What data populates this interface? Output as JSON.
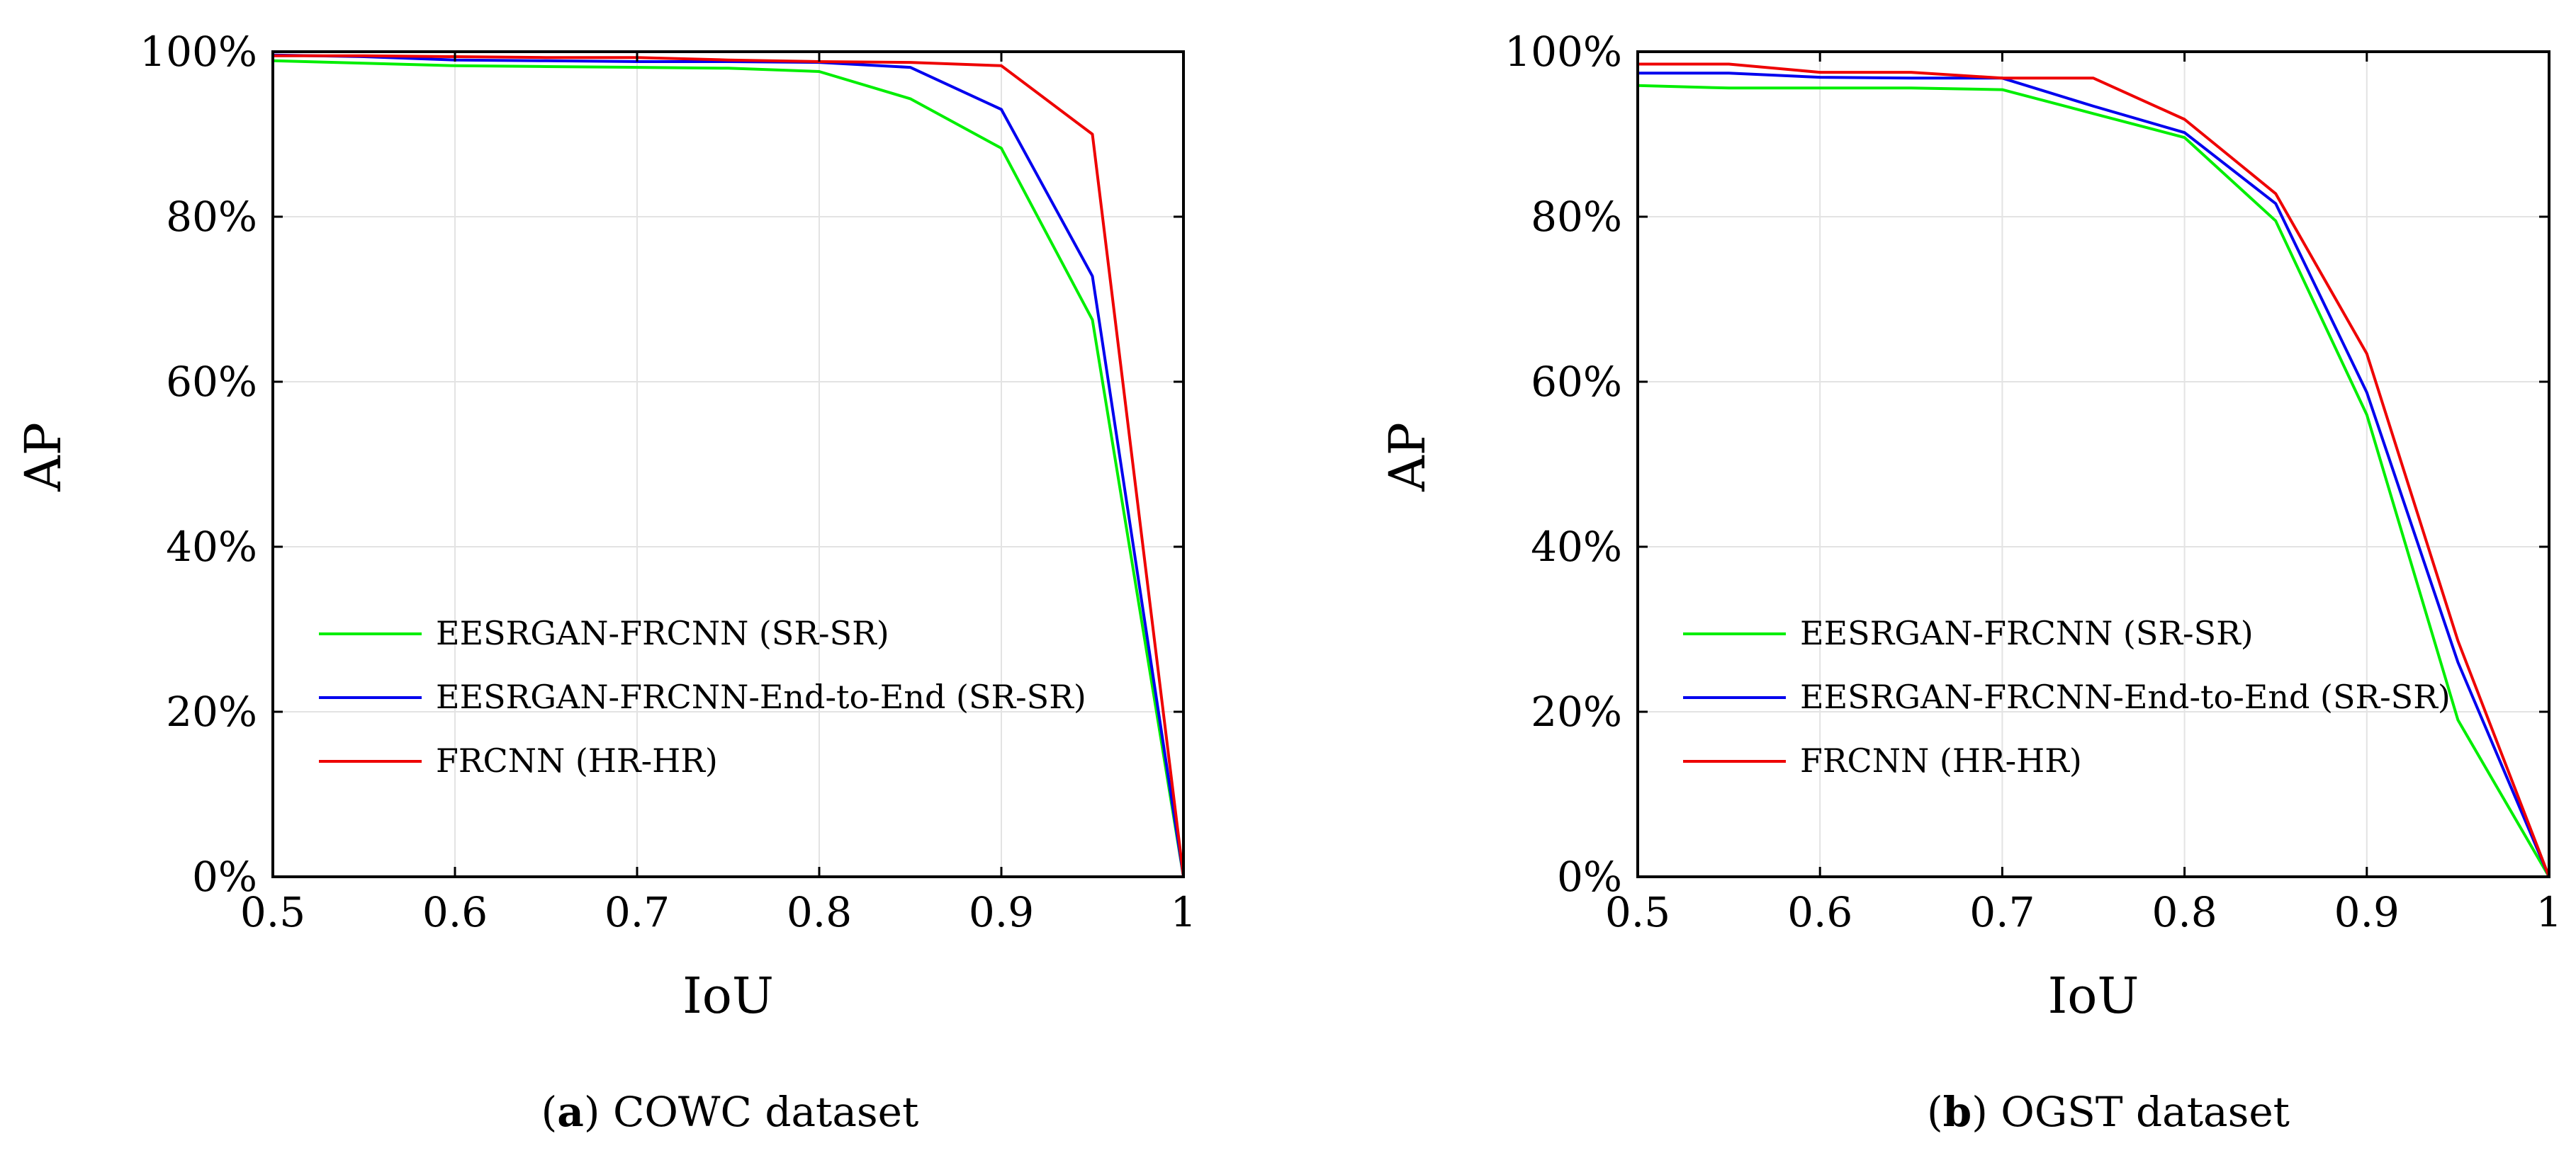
{
  "figure": {
    "colors": {
      "green": "#00ee00",
      "blue": "#0000ee",
      "red": "#ee0000"
    }
  },
  "chart_data": [
    {
      "type": "line",
      "caption_label": "a",
      "caption_text": "COWC dataset",
      "xlabel": "IoU",
      "ylabel": "AP",
      "xlim": [
        0.5,
        1
      ],
      "ylim": [
        0,
        100
      ],
      "x_ticks": [
        "0.5",
        "0.6",
        "0.7",
        "0.8",
        "0.9",
        "1"
      ],
      "y_ticks": [
        "0%",
        "20%",
        "40%",
        "60%",
        "80%",
        "100%"
      ],
      "grid": true,
      "legend_position": "bottom-left",
      "x": [
        0.5,
        0.55,
        0.6,
        0.65,
        0.7,
        0.75,
        0.8,
        0.85,
        0.9,
        0.95,
        1
      ],
      "series": [
        {
          "name": "EESRGAN-FRCNN (SR-SR)",
          "color": "#00ee00",
          "values": [
            98.9,
            98.6,
            98.3,
            98.2,
            98.1,
            98.0,
            97.6,
            94.3,
            88.3,
            67.5,
            0
          ]
        },
        {
          "name": "EESRGAN-FRCNN-End-to-End (SR-SR)",
          "color": "#0000ee",
          "values": [
            99.6,
            99.4,
            99.0,
            98.9,
            98.8,
            98.8,
            98.7,
            98.1,
            93.0,
            72.8,
            0
          ]
        },
        {
          "name": "FRCNN (HR-HR)",
          "color": "#ee0000",
          "values": [
            99.5,
            99.5,
            99.4,
            99.3,
            99.3,
            99.0,
            98.8,
            98.7,
            98.3,
            90.0,
            0
          ]
        }
      ]
    },
    {
      "type": "line",
      "caption_label": "b",
      "caption_text": "OGST dataset",
      "xlabel": "IoU",
      "ylabel": "AP",
      "xlim": [
        0.5,
        1
      ],
      "ylim": [
        0,
        100
      ],
      "x_ticks": [
        "0.5",
        "0.6",
        "0.7",
        "0.8",
        "0.9",
        "1"
      ],
      "y_ticks": [
        "0%",
        "20%",
        "40%",
        "60%",
        "80%",
        "100%"
      ],
      "grid": true,
      "legend_position": "bottom-left",
      "x": [
        0.5,
        0.55,
        0.6,
        0.65,
        0.7,
        0.75,
        0.8,
        0.85,
        0.9,
        0.95,
        1
      ],
      "series": [
        {
          "name": "EESRGAN-FRCNN (SR-SR)",
          "color": "#00ee00",
          "values": [
            95.9,
            95.6,
            95.6,
            95.6,
            95.4,
            92.5,
            89.6,
            79.5,
            56.0,
            19.0,
            0
          ]
        },
        {
          "name": "EESRGAN-FRCNN-End-to-End (SR-SR)",
          "color": "#0000ee",
          "values": [
            97.4,
            97.4,
            96.9,
            96.8,
            96.8,
            93.4,
            90.2,
            81.6,
            58.7,
            26.0,
            0
          ]
        },
        {
          "name": "FRCNN (HR-HR)",
          "color": "#ee0000",
          "values": [
            98.5,
            98.5,
            97.5,
            97.5,
            96.8,
            96.8,
            91.8,
            82.8,
            63.4,
            28.6,
            0
          ]
        }
      ]
    }
  ]
}
